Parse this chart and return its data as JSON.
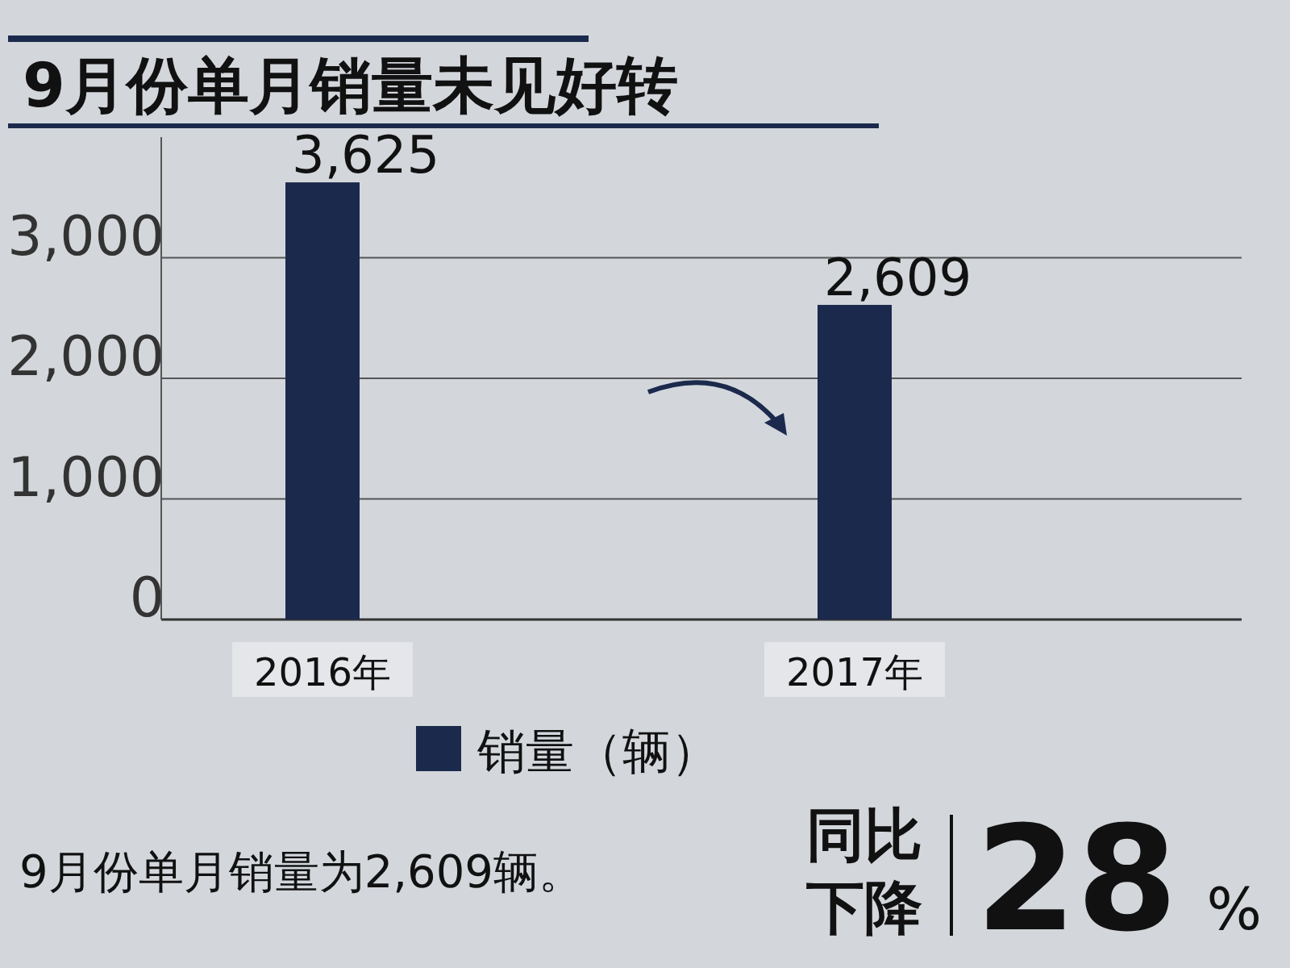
{
  "chart_data": {
    "type": "bar",
    "title": "9月份单月销量未见好转",
    "categories": [
      "2016年",
      "2017年"
    ],
    "series": [
      {
        "name": "销量（辆）",
        "color": "#1b2a4c",
        "values": [
          3625,
          2609
        ],
        "value_labels": [
          "3,625",
          "2,609"
        ]
      }
    ],
    "ylim": [
      0,
      4000
    ],
    "yticks": [
      {
        "value": 0,
        "label": "0"
      },
      {
        "value": 1000,
        "label": "1,000"
      },
      {
        "value": 2000,
        "label": "2,000"
      },
      {
        "value": 3000,
        "label": "3,000"
      }
    ],
    "grid": "y",
    "legend": "bottom",
    "annotations": [
      "9月份单月销量为2,609辆。",
      "同比下降",
      "28%"
    ]
  }
}
